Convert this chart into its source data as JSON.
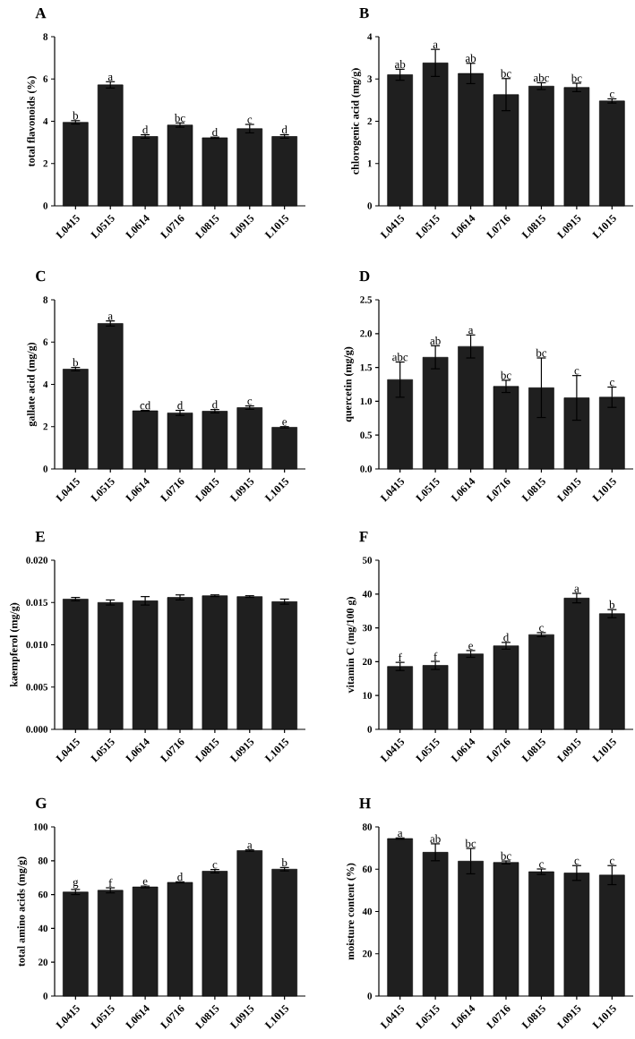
{
  "chart_data": [
    {
      "type": "bar",
      "title": "A",
      "ylabel": "total flavonoids (%)",
      "categories": [
        "L0415",
        "L0515",
        "L0614",
        "L0716",
        "L0815",
        "L0915",
        "L1015"
      ],
      "values": [
        3.95,
        5.72,
        3.28,
        3.82,
        3.22,
        3.65,
        3.28
      ],
      "errors": [
        0.08,
        0.15,
        0.08,
        0.1,
        0.03,
        0.2,
        0.08
      ],
      "color": "#1f1f1f",
      "ylim": [
        0,
        8
      ],
      "yticks": [
        0,
        2,
        4,
        6,
        8
      ],
      "annotations": [
        {
          "text": "b",
          "x": "L0415",
          "y": 4.03
        },
        {
          "text": "a",
          "x": "L0515",
          "y": 5.87
        },
        {
          "text": "d",
          "x": "L0614",
          "y": 3.36
        },
        {
          "text": "bc",
          "x": "L0716",
          "y": 3.92
        },
        {
          "text": "d",
          "x": "L0815",
          "y": 3.25
        },
        {
          "text": "c",
          "x": "L0915",
          "y": 3.85
        },
        {
          "text": "d",
          "x": "L1015",
          "y": 3.36
        }
      ]
    },
    {
      "type": "bar",
      "title": "B",
      "ylabel": "chlorogenic acid (mg/g)",
      "categories": [
        "L0415",
        "L0515",
        "L0614",
        "L0716",
        "L0815",
        "L0915",
        "L1015"
      ],
      "values": [
        3.1,
        3.38,
        3.13,
        2.63,
        2.83,
        2.8,
        2.48
      ],
      "errors": [
        0.13,
        0.32,
        0.24,
        0.38,
        0.08,
        0.1,
        0.05
      ],
      "color": "#1f1f1f",
      "ylim": [
        0,
        4
      ],
      "yticks": [
        0,
        1,
        2,
        3,
        4
      ],
      "annotations": [
        {
          "text": "ab",
          "x": "L0415",
          "y": 3.23
        },
        {
          "text": "a",
          "x": "L0515",
          "y": 3.7
        },
        {
          "text": "ab",
          "x": "L0614",
          "y": 3.37
        },
        {
          "text": "bc",
          "x": "L0716",
          "y": 3.01
        },
        {
          "text": "abc",
          "x": "L0815",
          "y": 2.91
        },
        {
          "text": "bc",
          "x": "L0915",
          "y": 2.9
        },
        {
          "text": "c",
          "x": "L1015",
          "y": 2.53
        }
      ]
    },
    {
      "type": "bar",
      "title": "C",
      "ylabel": "gallate acid (mg/g)",
      "categories": [
        "L0415",
        "L0515",
        "L0614",
        "L0716",
        "L0815",
        "L0915",
        "L1015"
      ],
      "values": [
        4.72,
        6.88,
        2.75,
        2.65,
        2.73,
        2.9,
        1.97
      ],
      "errors": [
        0.08,
        0.12,
        0.02,
        0.12,
        0.08,
        0.08,
        0.03
      ],
      "color": "#1f1f1f",
      "ylim": [
        0,
        8
      ],
      "yticks": [
        0,
        2,
        4,
        6,
        8
      ],
      "annotations": [
        {
          "text": "b",
          "x": "L0415",
          "y": 4.8
        },
        {
          "text": "a",
          "x": "L0515",
          "y": 7.0
        },
        {
          "text": "cd",
          "x": "L0614",
          "y": 2.77
        },
        {
          "text": "d",
          "x": "L0716",
          "y": 2.77
        },
        {
          "text": "d",
          "x": "L0815",
          "y": 2.81
        },
        {
          "text": "c",
          "x": "L0915",
          "y": 2.98
        },
        {
          "text": "e",
          "x": "L1015",
          "y": 2.0
        }
      ]
    },
    {
      "type": "bar",
      "title": "D",
      "ylabel": "quercetin (mg/g)",
      "categories": [
        "L0415",
        "L0515",
        "L0614",
        "L0716",
        "L0815",
        "L0915",
        "L1015"
      ],
      "values": [
        1.32,
        1.65,
        1.81,
        1.22,
        1.2,
        1.05,
        1.06
      ],
      "errors": [
        0.26,
        0.17,
        0.17,
        0.09,
        0.44,
        0.33,
        0.15
      ],
      "color": "#1f1f1f",
      "ylim": [
        0,
        2.5
      ],
      "yticks": [
        {
          "value": 0,
          "label": "0.0"
        },
        {
          "value": 0.5,
          "label": "0.5"
        },
        {
          "value": 1,
          "label": "1.0"
        },
        {
          "value": 1.5,
          "label": "1.5"
        },
        {
          "value": 2,
          "label": "2.0"
        },
        {
          "value": 2.5,
          "label": "2.5"
        }
      ],
      "annotations": [
        {
          "text": "abc",
          "x": "L0415",
          "y": 1.58
        },
        {
          "text": "ab",
          "x": "L0515",
          "y": 1.82
        },
        {
          "text": "a",
          "x": "L0614",
          "y": 1.98
        },
        {
          "text": "bc",
          "x": "L0716",
          "y": 1.31
        },
        {
          "text": "bc",
          "x": "L0815",
          "y": 1.64
        },
        {
          "text": "c",
          "x": "L0915",
          "y": 1.38
        },
        {
          "text": "c",
          "x": "L1015",
          "y": 1.21
        }
      ]
    },
    {
      "type": "bar",
      "title": "E",
      "ylabel": "kaempferol (mg/g)",
      "categories": [
        "L0415",
        "L0515",
        "L0614",
        "L0716",
        "L0815",
        "L0915",
        "L1015"
      ],
      "values": [
        0.0154,
        0.015,
        0.0152,
        0.0156,
        0.0158,
        0.0157,
        0.0151
      ],
      "errors": [
        0.0002,
        0.0003,
        0.0005,
        0.0003,
        0.0001,
        0.0001,
        0.0003
      ],
      "color": "#1f1f1f",
      "ylim": [
        0,
        0.02
      ],
      "yticks": [
        {
          "value": 0,
          "label": "0.000"
        },
        {
          "value": 0.005,
          "label": "0.005"
        },
        {
          "value": 0.01,
          "label": "0.010"
        },
        {
          "value": 0.015,
          "label": "0.015"
        },
        {
          "value": 0.02,
          "label": "0.020"
        }
      ]
    },
    {
      "type": "bar",
      "title": "F",
      "ylabel": "vitamin C (mg/100 g)",
      "categories": [
        "L0415",
        "L0515",
        "L0614",
        "L0716",
        "L0815",
        "L0915",
        "L1015"
      ],
      "values": [
        18.6,
        18.9,
        22.3,
        24.7,
        28.0,
        38.8,
        34.2
      ],
      "errors": [
        1.2,
        1.2,
        1.0,
        1.0,
        0.6,
        1.4,
        1.2
      ],
      "color": "#1f1f1f",
      "ylim": [
        0,
        50
      ],
      "yticks": [
        0,
        10,
        20,
        30,
        40,
        50
      ],
      "annotations": [
        {
          "text": "f",
          "x": "L0415",
          "y": 19.8
        },
        {
          "text": "f",
          "x": "L0515",
          "y": 20.1
        },
        {
          "text": "e",
          "x": "L0614",
          "y": 23.3
        },
        {
          "text": "d",
          "x": "L0716",
          "y": 25.7
        },
        {
          "text": "c",
          "x": "L0815",
          "y": 28.6
        },
        {
          "text": "a",
          "x": "L0915",
          "y": 40.2
        },
        {
          "text": "b",
          "x": "L1015",
          "y": 35.4
        }
      ]
    },
    {
      "type": "bar",
      "title": "G",
      "ylabel": "total amino acids (mg/g)",
      "categories": [
        "L0415",
        "L0515",
        "L0614",
        "L0716",
        "L0815",
        "L0915",
        "L1015"
      ],
      "values": [
        61.5,
        62.5,
        64.5,
        67.2,
        73.8,
        86.0,
        75.0
      ],
      "errors": [
        1.5,
        1.5,
        0.5,
        0.3,
        1.0,
        0.4,
        1.0
      ],
      "color": "#1f1f1f",
      "ylim": [
        0,
        100
      ],
      "yticks": [
        0,
        20,
        40,
        60,
        80,
        100
      ],
      "annotations": [
        {
          "text": "g",
          "x": "L0415",
          "y": 63.0
        },
        {
          "text": "f",
          "x": "L0515",
          "y": 64.0
        },
        {
          "text": "e",
          "x": "L0614",
          "y": 65.0
        },
        {
          "text": "d",
          "x": "L0716",
          "y": 67.5
        },
        {
          "text": "c",
          "x": "L0815",
          "y": 74.8
        },
        {
          "text": "a",
          "x": "L0915",
          "y": 86.4
        },
        {
          "text": "b",
          "x": "L1015",
          "y": 76.0
        }
      ]
    },
    {
      "type": "bar",
      "title": "H",
      "ylabel": "moisture content (%)",
      "categories": [
        "L0415",
        "L0515",
        "L0614",
        "L0716",
        "L0815",
        "L0915",
        "L1015"
      ],
      "values": [
        74.5,
        68.0,
        63.8,
        63.2,
        58.8,
        58.2,
        57.2
      ],
      "errors": [
        0.3,
        4.0,
        6.0,
        0.7,
        1.3,
        3.5,
        4.5
      ],
      "color": "#1f1f1f",
      "ylim": [
        0,
        80
      ],
      "yticks": [
        0,
        20,
        40,
        60,
        80
      ],
      "annotations": [
        {
          "text": "a",
          "x": "L0415",
          "y": 74.8
        },
        {
          "text": "ab",
          "x": "L0515",
          "y": 72.0
        },
        {
          "text": "bc",
          "x": "L0614",
          "y": 69.8
        },
        {
          "text": "bc",
          "x": "L0716",
          "y": 63.9
        },
        {
          "text": "c",
          "x": "L0815",
          "y": 60.1
        },
        {
          "text": "c",
          "x": "L0915",
          "y": 61.7
        },
        {
          "text": "c",
          "x": "L1015",
          "y": 61.7
        }
      ]
    }
  ]
}
